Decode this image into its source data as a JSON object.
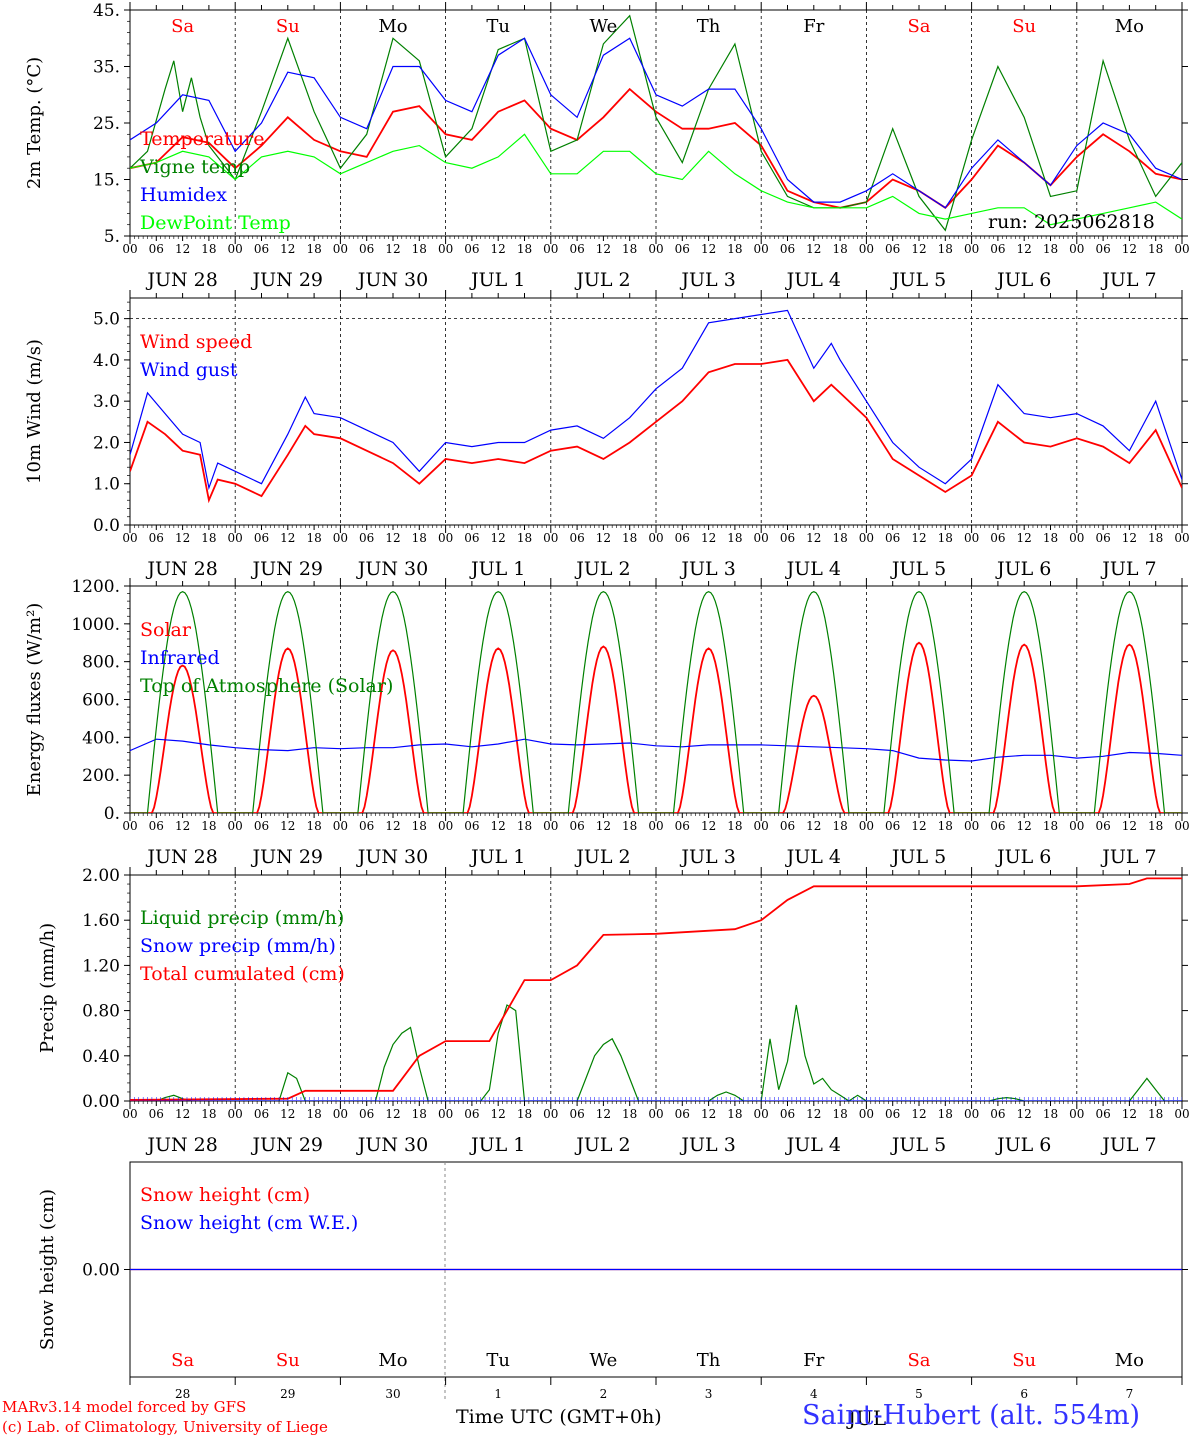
{
  "page": {
    "run_label": "run: 2025062818",
    "model_credit": "MARv3.14 model forced by GFS",
    "lab_credit": "(c) Lab. of Climatology, University of Liege",
    "station": "Saint-Hubert (alt. 554m)",
    "overlap_label": "JUL",
    "xaxis_title": "Time UTC (GMT+0h)"
  },
  "colors": {
    "red": "#ff0000",
    "blue": "#0000ff",
    "darkgreen": "#008000",
    "lightgreen": "#00ff00",
    "axis": "#000000",
    "grid": "#000000"
  },
  "days": {
    "dates": [
      "JUN 28",
      "JUN 29",
      "JUN 30",
      "JUL 1",
      "JUL 2",
      "JUL 3",
      "JUL 4",
      "JUL 5",
      "JUL 6",
      "JUL 7"
    ],
    "weekdays": [
      "Sa",
      "Su",
      "Mo",
      "Tu",
      "We",
      "Th",
      "Fr",
      "Sa",
      "Su",
      "Mo"
    ],
    "weekday_colors": [
      "red",
      "red",
      "black",
      "black",
      "black",
      "black",
      "black",
      "red",
      "red",
      "black"
    ],
    "day_numbers": [
      "28",
      "29",
      "30",
      "1",
      "2",
      "3",
      "4",
      "5",
      "6",
      "7"
    ],
    "hour_ticks": [
      "00",
      "06",
      "12",
      "18"
    ]
  },
  "chart_data": [
    {
      "type": "line",
      "id": "temperature",
      "ylabel": "2m Temp. (°C)",
      "yticks": [
        "5.",
        "15.",
        "25.",
        "35.",
        "45."
      ],
      "ylim": [
        5,
        45
      ],
      "x_unit": "hours since 2025-06-28 00 UTC",
      "series": [
        {
          "name": "Temperature",
          "color": "red",
          "x": [
            0,
            6,
            12,
            18,
            24,
            30,
            36,
            42,
            48,
            54,
            60,
            66,
            72,
            78,
            84,
            90,
            96,
            102,
            108,
            114,
            120,
            126,
            132,
            138,
            144,
            150,
            156,
            162,
            168,
            174,
            180,
            186,
            192,
            198,
            204,
            210,
            216,
            222,
            228,
            234,
            240
          ],
          "y": [
            17,
            18,
            22.5,
            21.5,
            17,
            21,
            26,
            22,
            20,
            19,
            27,
            28,
            23,
            22,
            27,
            29,
            24,
            22,
            26,
            31,
            27,
            24,
            24,
            25,
            21,
            13,
            11,
            10,
            11,
            15,
            13,
            10,
            15,
            21,
            18,
            14,
            19,
            23,
            20,
            16,
            15
          ]
        },
        {
          "name": "Vigne temp",
          "color": "darkgreen",
          "x": [
            0,
            4,
            8,
            10,
            12,
            14,
            16,
            18,
            24,
            30,
            36,
            42,
            48,
            54,
            60,
            66,
            72,
            78,
            84,
            90,
            96,
            102,
            108,
            114,
            120,
            126,
            132,
            138,
            144,
            150,
            156,
            162,
            168,
            174,
            180,
            186,
            192,
            198,
            204,
            210,
            216,
            222,
            228,
            234,
            240
          ],
          "y": [
            17,
            20,
            31,
            36,
            27,
            33,
            26,
            21,
            15,
            27,
            40,
            27,
            17,
            23,
            40,
            36,
            19,
            24,
            38,
            40,
            20,
            22,
            39,
            44,
            26,
            18,
            31,
            39,
            20,
            12,
            10,
            10,
            11,
            24,
            12,
            6,
            22,
            35,
            26,
            12,
            13,
            36,
            22,
            12,
            18
          ]
        },
        {
          "name": "Humidex",
          "color": "blue",
          "x": [
            0,
            6,
            12,
            18,
            24,
            30,
            36,
            42,
            48,
            54,
            60,
            66,
            72,
            78,
            84,
            90,
            96,
            102,
            108,
            114,
            120,
            126,
            132,
            138,
            144,
            150,
            156,
            162,
            168,
            174,
            180,
            186,
            192,
            198,
            204,
            210,
            216,
            222,
            228,
            234,
            240
          ],
          "y": [
            22,
            25,
            30,
            29,
            20,
            25,
            34,
            33,
            26,
            24,
            35,
            35,
            29,
            27,
            37,
            40,
            30,
            26,
            37,
            40,
            30,
            28,
            31,
            31,
            24,
            15,
            11,
            11,
            13,
            16,
            13,
            10,
            17,
            22,
            18,
            14,
            21,
            25,
            23,
            17,
            15
          ]
        },
        {
          "name": "DewPoint Temp",
          "color": "lightgreen",
          "x": [
            0,
            6,
            12,
            18,
            24,
            30,
            36,
            42,
            48,
            54,
            60,
            66,
            72,
            78,
            84,
            90,
            96,
            102,
            108,
            114,
            120,
            126,
            132,
            138,
            144,
            150,
            156,
            162,
            168,
            174,
            180,
            186,
            192,
            198,
            204,
            210,
            216,
            222,
            228,
            234,
            240
          ],
          "y": [
            17,
            18,
            20,
            19,
            15,
            19,
            20,
            19,
            16,
            18,
            20,
            21,
            18,
            17,
            19,
            23,
            16,
            16,
            20,
            20,
            16,
            15,
            20,
            16,
            13,
            11,
            10,
            10,
            10,
            12,
            9,
            8,
            9,
            10,
            10,
            7,
            8,
            9,
            10,
            11,
            8
          ]
        }
      ]
    },
    {
      "type": "line",
      "id": "wind",
      "ylabel": "10m Wind (m/s)",
      "yticks": [
        "0.0",
        "1.0",
        "2.0",
        "3.0",
        "4.0",
        "5.0"
      ],
      "ylim": [
        0,
        5.5
      ],
      "x_unit": "hours since 2025-06-28 00 UTC",
      "series": [
        {
          "name": "Wind speed",
          "color": "red",
          "x": [
            0,
            4,
            8,
            12,
            16,
            18,
            20,
            24,
            30,
            36,
            40,
            42,
            48,
            54,
            60,
            66,
            72,
            78,
            84,
            90,
            96,
            102,
            108,
            114,
            120,
            126,
            132,
            138,
            144,
            150,
            156,
            160,
            162,
            168,
            174,
            180,
            186,
            192,
            198,
            204,
            210,
            216,
            222,
            228,
            234,
            240
          ],
          "y": [
            1.3,
            2.5,
            2.2,
            1.8,
            1.7,
            0.6,
            1.1,
            1.0,
            0.7,
            1.7,
            2.4,
            2.2,
            2.1,
            1.8,
            1.5,
            1.0,
            1.6,
            1.5,
            1.6,
            1.5,
            1.8,
            1.9,
            1.6,
            2.0,
            2.5,
            3.0,
            3.7,
            3.9,
            3.9,
            4.0,
            3.0,
            3.4,
            3.2,
            2.6,
            1.6,
            1.2,
            0.8,
            1.2,
            2.5,
            2.0,
            1.9,
            2.1,
            1.9,
            1.5,
            2.3,
            0.9
          ]
        },
        {
          "name": "Wind gust",
          "color": "blue",
          "x": [
            0,
            4,
            8,
            12,
            16,
            18,
            20,
            24,
            30,
            36,
            40,
            42,
            48,
            54,
            60,
            66,
            72,
            78,
            84,
            90,
            96,
            102,
            108,
            114,
            120,
            126,
            132,
            138,
            144,
            150,
            156,
            160,
            162,
            168,
            174,
            180,
            186,
            192,
            198,
            204,
            210,
            216,
            222,
            228,
            234,
            240
          ],
          "y": [
            1.7,
            3.2,
            2.7,
            2.2,
            2.0,
            0.9,
            1.5,
            1.3,
            1.0,
            2.2,
            3.1,
            2.7,
            2.6,
            2.3,
            2.0,
            1.3,
            2.0,
            1.9,
            2.0,
            2.0,
            2.3,
            2.4,
            2.1,
            2.6,
            3.3,
            3.8,
            4.9,
            5.0,
            5.1,
            5.2,
            3.8,
            4.4,
            4.0,
            3.0,
            2.0,
            1.4,
            1.0,
            1.6,
            3.4,
            2.7,
            2.6,
            2.7,
            2.4,
            1.8,
            3.0,
            1.1
          ]
        }
      ]
    },
    {
      "type": "line",
      "id": "energy",
      "ylabel": "Energy fluxes (W/m²)",
      "yticks": [
        "0.",
        "200.",
        "400.",
        "600.",
        "800.",
        "1000.",
        "1200."
      ],
      "ylim": [
        0,
        1200
      ],
      "x_unit": "hours since 2025-06-28 00 UTC",
      "series": [
        {
          "name": "Solar",
          "color": "red",
          "peak_values": [
            780,
            870,
            860,
            870,
            880,
            870,
            620,
            900,
            890,
            890
          ]
        },
        {
          "name": "Infrared",
          "color": "blue",
          "x": [
            0,
            6,
            12,
            18,
            24,
            30,
            36,
            42,
            48,
            54,
            60,
            66,
            72,
            78,
            84,
            90,
            96,
            102,
            108,
            114,
            120,
            126,
            132,
            138,
            144,
            150,
            156,
            162,
            168,
            174,
            180,
            186,
            192,
            198,
            204,
            210,
            216,
            222,
            228,
            234,
            240
          ],
          "y": [
            330,
            390,
            380,
            360,
            345,
            335,
            330,
            345,
            340,
            345,
            345,
            360,
            365,
            350,
            365,
            390,
            365,
            360,
            365,
            370,
            355,
            350,
            360,
            360,
            360,
            355,
            350,
            345,
            340,
            330,
            290,
            280,
            275,
            295,
            305,
            305,
            290,
            300,
            320,
            315,
            305
          ]
        },
        {
          "name": "Top of Atmosphere (Solar)",
          "color": "darkgreen",
          "peak": 1170
        }
      ]
    },
    {
      "type": "line",
      "id": "precip",
      "ylabel": "Precip (mm/h)",
      "yticks": [
        "0.00",
        "0.40",
        "0.80",
        "1.20",
        "1.60",
        "2.00"
      ],
      "ylim": [
        0,
        2.0
      ],
      "x_unit": "hours since 2025-06-28 00 UTC",
      "series": [
        {
          "name": "Liquid precip (mm/h)",
          "color": "darkgreen",
          "x": [
            0,
            6,
            8,
            10,
            12,
            14,
            16,
            34,
            36,
            38,
            40,
            42,
            56,
            58,
            60,
            62,
            64,
            66,
            68,
            70,
            80,
            82,
            84,
            86,
            88,
            90,
            92,
            102,
            104,
            106,
            108,
            110,
            112,
            114,
            116,
            118,
            120,
            132,
            134,
            136,
            138,
            140,
            142,
            144,
            146,
            148,
            150,
            152,
            154,
            156,
            158,
            160,
            162,
            164,
            166,
            168,
            196,
            198,
            200,
            202,
            204,
            206,
            228,
            230,
            232,
            234,
            236,
            240
          ],
          "y": [
            0,
            0,
            0.03,
            0.05,
            0.02,
            0,
            0,
            0,
            0.25,
            0.2,
            0,
            0,
            0,
            0.3,
            0.5,
            0.6,
            0.65,
            0.3,
            0,
            0,
            0,
            0.1,
            0.6,
            0.85,
            0.8,
            0,
            0,
            0,
            0.2,
            0.4,
            0.5,
            0.55,
            0.4,
            0.2,
            0,
            0,
            0,
            0,
            0.05,
            0.08,
            0.05,
            0,
            0,
            0,
            0.55,
            0.1,
            0.35,
            0.85,
            0.4,
            0.15,
            0.2,
            0.1,
            0.05,
            0,
            0.05,
            0,
            0,
            0.02,
            0.03,
            0.02,
            0,
            0,
            0,
            0.1,
            0.2,
            0.1,
            0,
            0
          ]
        },
        {
          "name": "Snow precip (mm/h)",
          "color": "blue",
          "x": [
            0,
            240
          ],
          "y": [
            0,
            0
          ]
        },
        {
          "name": "Total cumulated (cm)",
          "color": "red",
          "x": [
            0,
            36,
            40,
            60,
            66,
            72,
            82,
            86,
            90,
            96,
            102,
            108,
            120,
            138,
            144,
            150,
            156,
            168,
            216,
            228,
            232,
            240
          ],
          "y": [
            0.01,
            0.02,
            0.09,
            0.09,
            0.4,
            0.53,
            0.53,
            0.8,
            1.07,
            1.07,
            1.2,
            1.47,
            1.48,
            1.52,
            1.6,
            1.78,
            1.9,
            1.9,
            1.9,
            1.92,
            1.97,
            1.97
          ]
        }
      ]
    },
    {
      "type": "line",
      "id": "snow",
      "ylabel": "Snow height (cm)",
      "yticks": [
        "0.00"
      ],
      "ylim": [
        -1,
        1
      ],
      "x_unit": "hours since 2025-06-28 00 UTC",
      "series": [
        {
          "name": "Snow height (cm)",
          "color": "red",
          "x": [
            0,
            240
          ],
          "y": [
            0,
            0
          ]
        },
        {
          "name": "Snow height (cm W.E.)",
          "color": "blue",
          "x": [
            0,
            240
          ],
          "y": [
            0,
            0
          ]
        }
      ]
    }
  ]
}
